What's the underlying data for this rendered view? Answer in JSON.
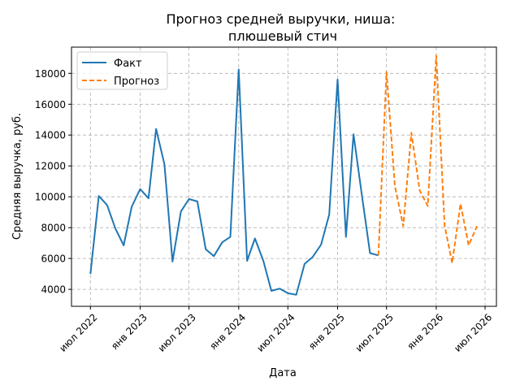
{
  "chart_data": {
    "type": "line",
    "title": "Прогноз средней выручки, ниша:\nплюшевый стич",
    "xlabel": "Дата",
    "ylabel": "Средняя выручка, руб.",
    "ylim": [
      2900,
      19700
    ],
    "yticks": [
      4000,
      6000,
      8000,
      10000,
      12000,
      14000,
      16000,
      18000
    ],
    "xlim": [
      "2022-04-22",
      "2026-08-12"
    ],
    "xticks": [
      {
        "date": "2022-07-01",
        "label": "июл 2022"
      },
      {
        "date": "2023-01-01",
        "label": "янв 2023"
      },
      {
        "date": "2023-07-01",
        "label": "июл 2023"
      },
      {
        "date": "2024-01-01",
        "label": "янв 2024"
      },
      {
        "date": "2024-07-01",
        "label": "июл 2024"
      },
      {
        "date": "2025-01-01",
        "label": "янв 2025"
      },
      {
        "date": "2025-07-01",
        "label": "июл 2025"
      },
      {
        "date": "2026-01-01",
        "label": "янв 2026"
      },
      {
        "date": "2026-07-01",
        "label": "июл 2026"
      }
    ],
    "grid": true,
    "legend": "top-left",
    "series": [
      {
        "name": "Факт",
        "color": "#1f77b4",
        "style": "solid",
        "x": [
          "2022-07-01",
          "2022-08-01",
          "2022-09-01",
          "2022-10-01",
          "2022-11-01",
          "2022-12-01",
          "2023-01-01",
          "2023-02-01",
          "2023-03-01",
          "2023-04-01",
          "2023-05-01",
          "2023-06-01",
          "2023-07-01",
          "2023-08-01",
          "2023-09-01",
          "2023-10-01",
          "2023-11-01",
          "2023-12-01",
          "2024-01-01",
          "2024-02-01",
          "2024-03-01",
          "2024-04-01",
          "2024-05-01",
          "2024-06-01",
          "2024-07-01",
          "2024-08-01",
          "2024-09-01",
          "2024-10-01",
          "2024-11-01",
          "2024-12-01",
          "2025-01-01",
          "2025-02-01",
          "2025-03-01",
          "2025-04-01",
          "2025-05-01",
          "2025-06-01"
        ],
        "y": [
          5000,
          10050,
          9450,
          7950,
          6850,
          9350,
          10500,
          9900,
          14400,
          12100,
          5800,
          9050,
          9850,
          9700,
          6600,
          6150,
          7050,
          7400,
          18250,
          5850,
          7300,
          5850,
          3900,
          4050,
          3750,
          3650,
          5650,
          6100,
          6900,
          8850,
          17600,
          7400,
          14050,
          10100,
          6350,
          6200
        ]
      },
      {
        "name": "Прогноз",
        "color": "#ff7f0e",
        "style": "dashed",
        "x": [
          "2025-06-01",
          "2025-07-01",
          "2025-08-01",
          "2025-09-01",
          "2025-10-01",
          "2025-11-01",
          "2025-12-01",
          "2026-01-01",
          "2026-02-01",
          "2026-03-01",
          "2026-04-01",
          "2026-05-01",
          "2026-06-01"
        ],
        "y": [
          6200,
          18100,
          10700,
          8100,
          14150,
          10400,
          9400,
          19150,
          8150,
          5700,
          9550,
          6850,
          8100
        ]
      }
    ]
  }
}
